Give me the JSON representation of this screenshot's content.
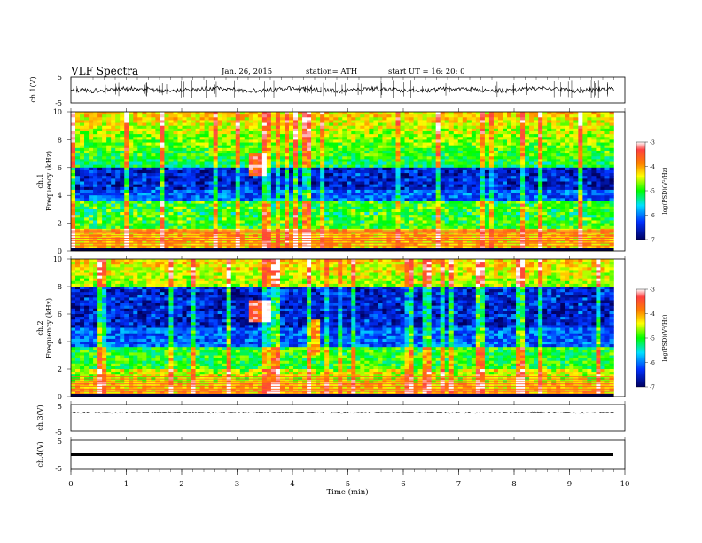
{
  "header": {
    "title": "VLF  Spectra",
    "date": "Jan. 26, 2015",
    "station": "station= ATH",
    "start": "start  UT =   16: 20: 0"
  },
  "x_axis": {
    "label": "Time  (min)",
    "ticks": [
      "0",
      "1",
      "2",
      "3",
      "4",
      "5",
      "6",
      "7",
      "8",
      "9",
      "10"
    ]
  },
  "panels": {
    "ch1_wave": {
      "ylabel": "ch.1(V)",
      "ticks": [
        "5",
        "-5"
      ]
    },
    "ch1_spec": {
      "ylabel_ch": "ch.1",
      "ylabel": "Frequency (kHz)",
      "ticks": [
        "10",
        "8",
        "6",
        "4",
        "2",
        "0"
      ]
    },
    "ch2_spec": {
      "ylabel_ch": "ch.2",
      "ylabel": "Frequency (kHz)",
      "ticks": [
        "10",
        "8",
        "6",
        "4",
        "2",
        "0"
      ]
    },
    "ch3_wave": {
      "ylabel": "ch.3(V)",
      "ticks": [
        "5",
        "-5"
      ]
    },
    "ch4_wave": {
      "ylabel": "ch.4(V)",
      "ticks": [
        "5",
        "-5"
      ]
    }
  },
  "colorbar": {
    "label": "log(PSD)(V²/Hz)",
    "ticks": [
      "-3",
      "-4",
      "-5",
      "-6",
      "-7"
    ],
    "stops": [
      "#ff0000",
      "#ffc000",
      "#00ff00",
      "#00c8ff",
      "#0000ff",
      "#000040"
    ]
  },
  "chart_data": {
    "type": "heatmap",
    "title": "VLF  Spectra",
    "xlabel": "Time  (min)",
    "xlim": [
      0,
      10
    ],
    "data_end_min": 9.8,
    "ylim_frequency_khz": [
      0,
      10
    ],
    "ylim_voltage_v": [
      -5,
      5
    ],
    "colorscale_range_log_psd": [
      -7,
      -3
    ],
    "events": [
      {
        "channel": "ch.1",
        "time_min": [
          3.2,
          3.5
        ],
        "freq_khz": [
          5.5,
          7
        ],
        "log_psd": -3.5
      },
      {
        "channel": "ch.2",
        "time_min": [
          3.2,
          3.6
        ],
        "freq_khz": [
          5.5,
          7
        ],
        "log_psd": -3.5
      },
      {
        "channel": "ch.2",
        "time_min": [
          4.3,
          4.5
        ],
        "freq_khz": [
          3,
          5.5
        ],
        "log_psd": -4
      }
    ],
    "bands_khz": [
      {
        "channel": "ch.1",
        "freq_khz": [
          4.5,
          6
        ],
        "log_psd": -6.5
      },
      {
        "channel": "ch.1",
        "freq_khz": [
          2,
          3.5
        ],
        "log_psd": -5
      },
      {
        "channel": "ch.2",
        "freq_khz": [
          5,
          8
        ],
        "log_psd": -6.5
      },
      {
        "channel": "ch.2",
        "freq_khz": [
          1,
          2
        ],
        "log_psd": -4.5
      }
    ],
    "colorbar": {
      "label": "log(PSD)(V²/Hz)",
      "range": [
        -7,
        -3
      ]
    }
  }
}
